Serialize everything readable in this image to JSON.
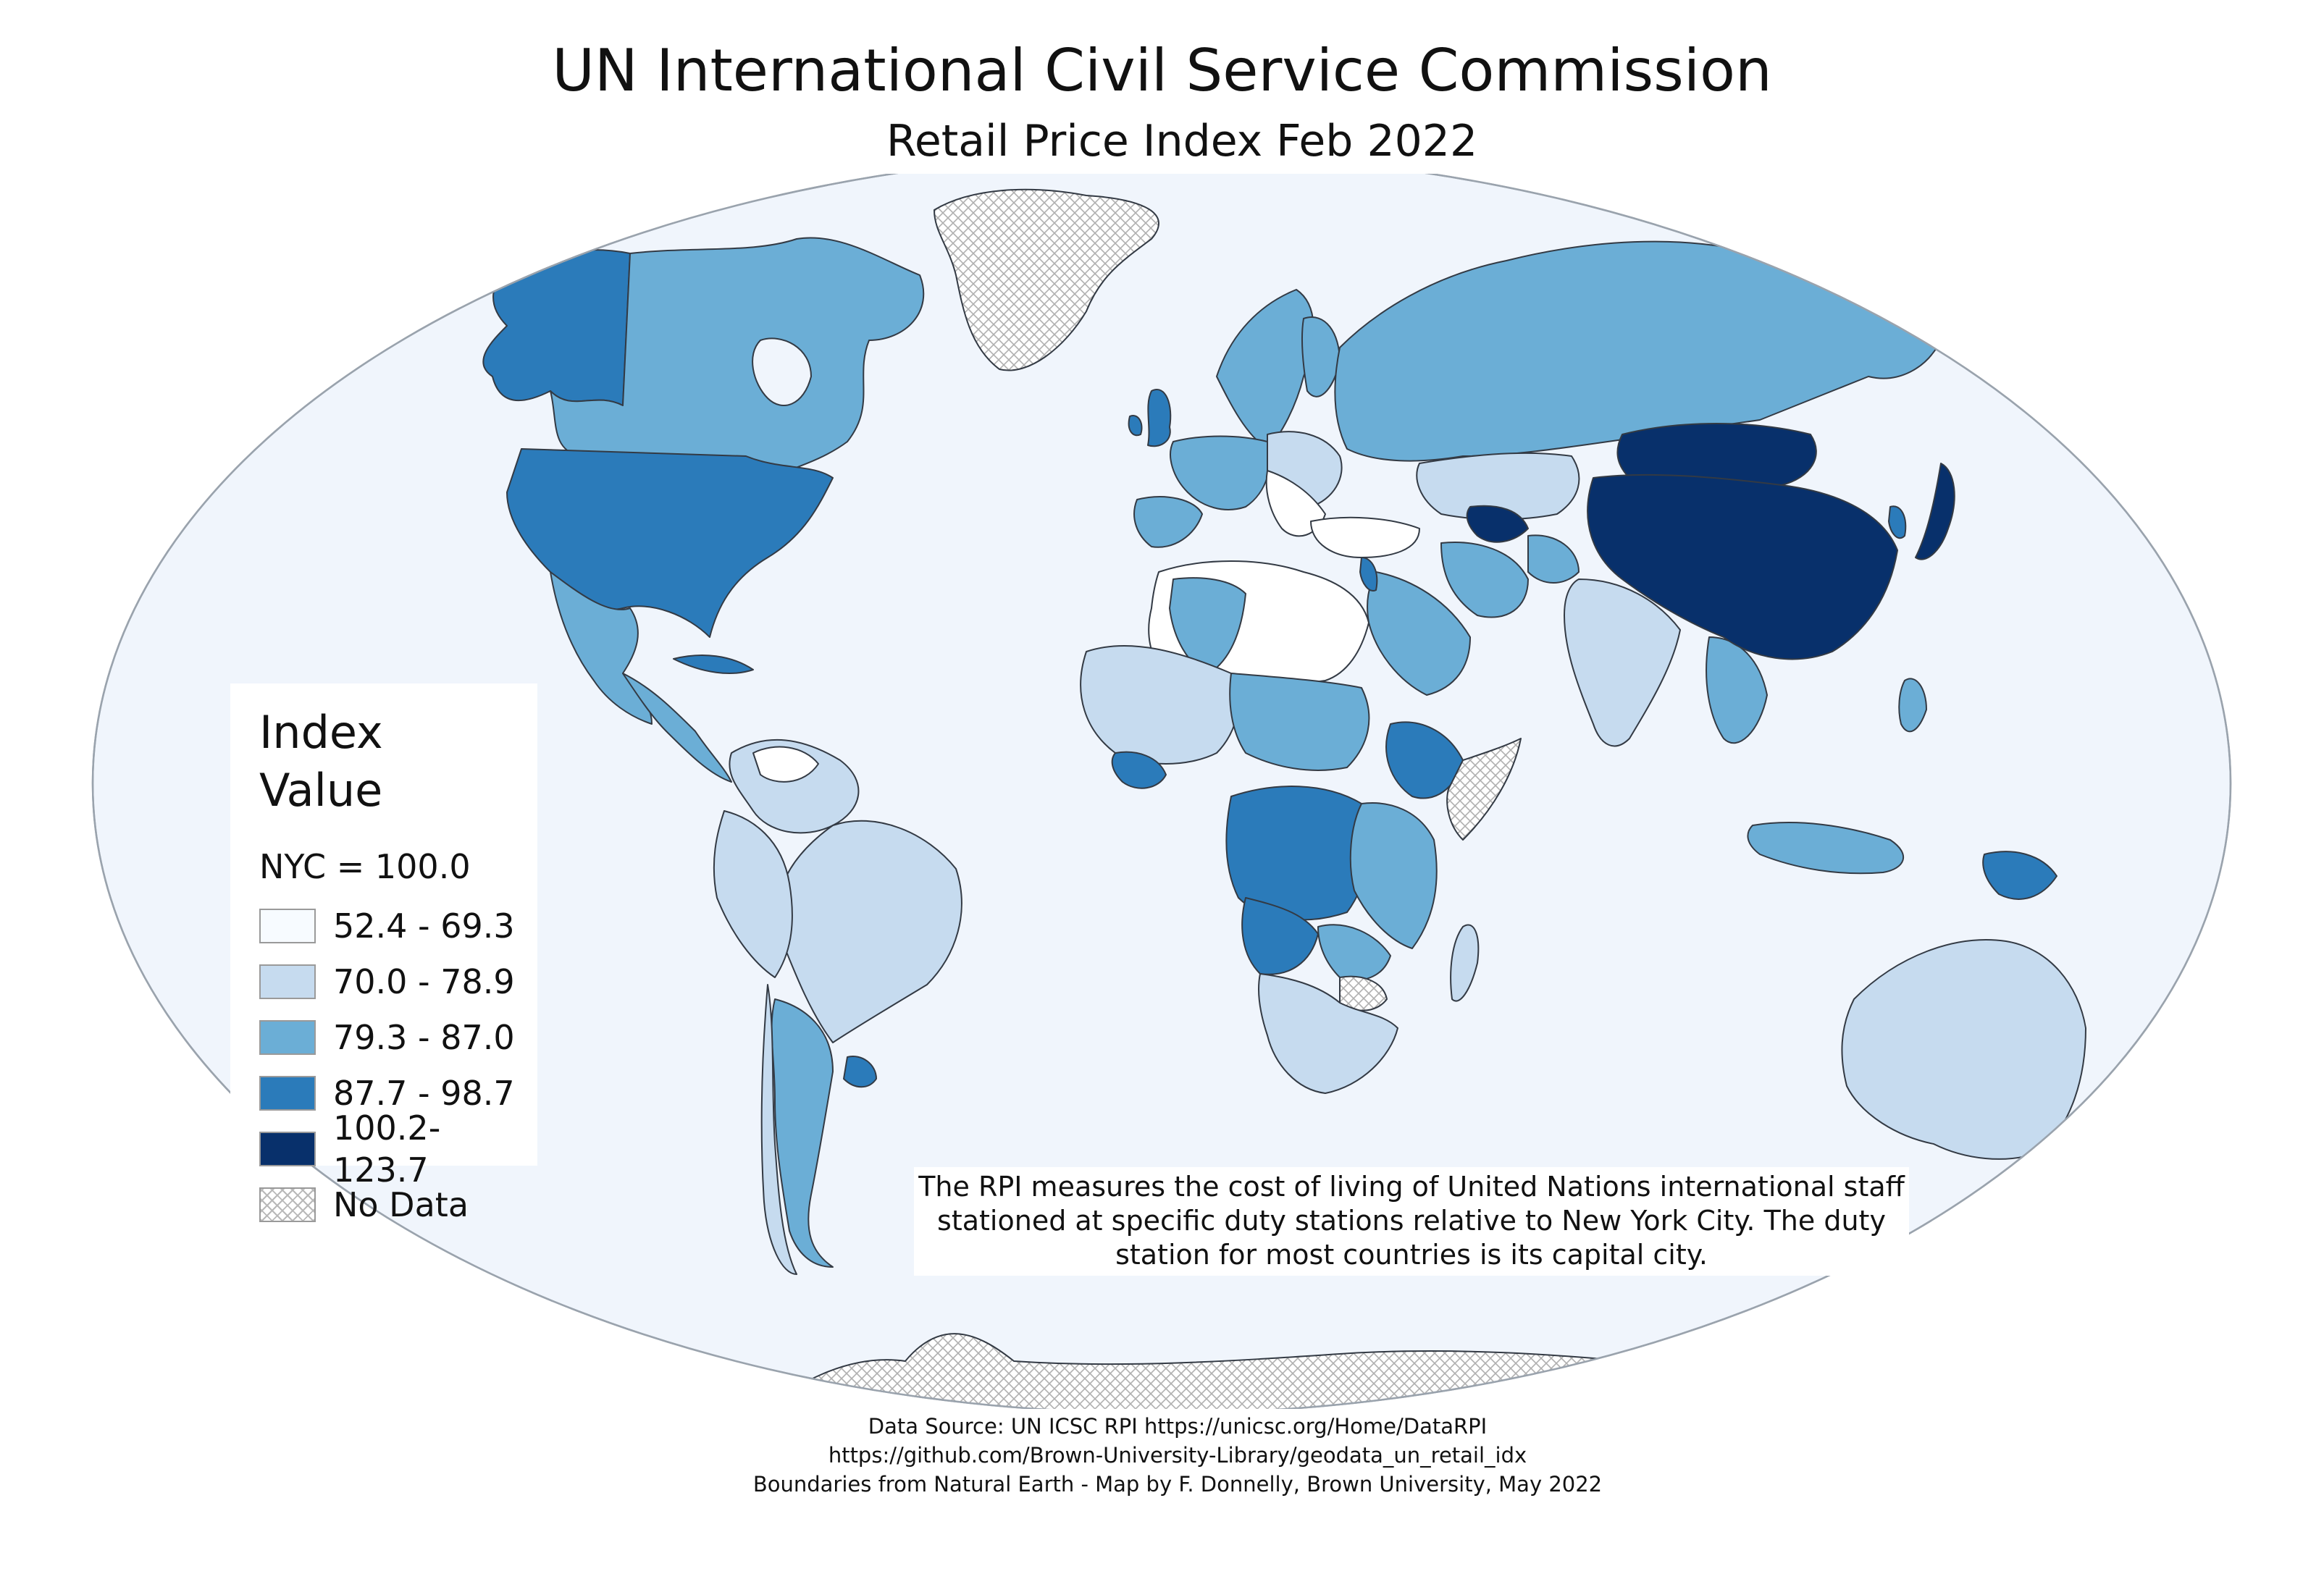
{
  "title": "UN International Civil Service Commission",
  "subtitle": "Retail Price Index Feb 2022",
  "legend": {
    "title": "Index Value",
    "subtitle": "NYC = 100.0",
    "classes": [
      {
        "label": "52.4 - 69.3",
        "color": "#f7fbff"
      },
      {
        "label": "70.0 - 78.9",
        "color": "#c6dbef"
      },
      {
        "label": "79.3 - 87.0",
        "color": "#6baed6"
      },
      {
        "label": "87.7 - 98.7",
        "color": "#2b7bba"
      },
      {
        "label": "100.2- 123.7",
        "color": "#08306b"
      },
      {
        "label": "No Data",
        "color": "hatched"
      }
    ]
  },
  "note": {
    "lines": [
      "The RPI measures the cost of living of United Nations international staff",
      "stationed at specific duty stations relative to New York City. The duty",
      "station for most countries is its capital city."
    ]
  },
  "source": {
    "lines": [
      "Data Source: UN ICSC RPI https://unicsc.org/Home/DataRPI",
      "https://github.com/Brown-University-Library/geodata_un_retail_idx",
      "Boundaries from Natural Earth - Map by F. Donnelly, Brown University, May 2022"
    ]
  },
  "colors": {
    "ocean": "#f0f5fc",
    "graticule_outline": "#9aa3ad",
    "country_border": "#333a44"
  }
}
